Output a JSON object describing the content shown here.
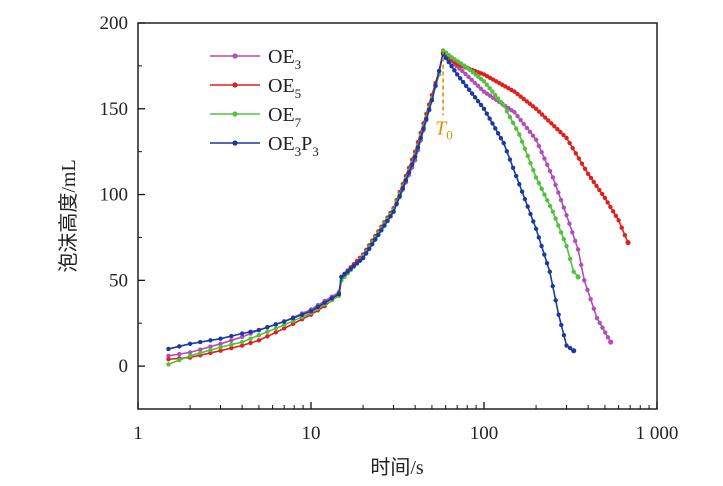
{
  "chart_data": {
    "type": "line",
    "xlabel": "时间/s",
    "ylabel": "泡沫高度/mL",
    "xscale": "log",
    "xlim": [
      1,
      1000
    ],
    "ylim": [
      -25,
      200
    ],
    "xticks": [
      {
        "value": 1,
        "label": "1"
      },
      {
        "value": 10,
        "label": "10"
      },
      {
        "value": 100,
        "label": "100"
      },
      {
        "value": 1000,
        "label": "1 000"
      }
    ],
    "yticks": [
      {
        "value": 0,
        "label": "0"
      },
      {
        "value": 50,
        "label": "50"
      },
      {
        "value": 100,
        "label": "100"
      },
      {
        "value": 150,
        "label": "150"
      },
      {
        "value": 200,
        "label": "200"
      }
    ],
    "legend_position": "top-left",
    "annotation": {
      "base": "T",
      "sub": "0",
      "x": 58,
      "y_top": 184,
      "y_bottom": 145,
      "color": "#ef8a00"
    },
    "series": [
      {
        "name": "OE3",
        "name_base": "OE",
        "name_sub": "3",
        "color": "#b04fb8",
        "points": [
          [
            1.5,
            6
          ],
          [
            2,
            8
          ],
          [
            3,
            13
          ],
          [
            4,
            17
          ],
          [
            5,
            21
          ],
          [
            7,
            26
          ],
          [
            10,
            33
          ],
          [
            12,
            38
          ],
          [
            14.5,
            43
          ],
          [
            15,
            52
          ],
          [
            20,
            63
          ],
          [
            30,
            90
          ],
          [
            40,
            120
          ],
          [
            50,
            155
          ],
          [
            55,
            172
          ],
          [
            58,
            182
          ],
          [
            62,
            179
          ],
          [
            75,
            172
          ],
          [
            100,
            160
          ],
          [
            150,
            148
          ],
          [
            200,
            132
          ],
          [
            250,
            110
          ],
          [
            300,
            88
          ],
          [
            350,
            68
          ],
          [
            380,
            50
          ],
          [
            450,
            28
          ],
          [
            540,
            14
          ]
        ]
      },
      {
        "name": "OE5",
        "name_base": "OE",
        "name_sub": "5",
        "color": "#e02020",
        "points": [
          [
            1.5,
            4
          ],
          [
            2,
            5
          ],
          [
            3,
            9
          ],
          [
            4,
            12
          ],
          [
            5,
            15
          ],
          [
            7,
            22
          ],
          [
            10,
            30
          ],
          [
            12,
            35
          ],
          [
            14.5,
            42
          ],
          [
            15,
            52
          ],
          [
            20,
            65
          ],
          [
            30,
            92
          ],
          [
            40,
            125
          ],
          [
            50,
            158
          ],
          [
            55,
            172
          ],
          [
            58,
            183
          ],
          [
            70,
            176
          ],
          [
            100,
            170
          ],
          [
            150,
            160
          ],
          [
            200,
            150
          ],
          [
            300,
            133
          ],
          [
            400,
            112
          ],
          [
            500,
            98
          ],
          [
            600,
            85
          ],
          [
            680,
            72
          ]
        ]
      },
      {
        "name": "OE7",
        "name_base": "OE",
        "name_sub": "7",
        "color": "#55c03e",
        "points": [
          [
            1.5,
            1
          ],
          [
            2,
            6
          ],
          [
            3,
            11
          ],
          [
            4,
            14
          ],
          [
            5,
            18
          ],
          [
            7,
            24
          ],
          [
            10,
            31
          ],
          [
            12,
            36
          ],
          [
            14.5,
            41
          ],
          [
            15,
            50
          ],
          [
            20,
            64
          ],
          [
            30,
            91
          ],
          [
            40,
            123
          ],
          [
            50,
            156
          ],
          [
            55,
            170
          ],
          [
            58,
            184
          ],
          [
            65,
            180
          ],
          [
            80,
            174
          ],
          [
            100,
            166
          ],
          [
            130,
            152
          ],
          [
            160,
            135
          ],
          [
            200,
            110
          ],
          [
            250,
            90
          ],
          [
            300,
            70
          ],
          [
            330,
            55
          ],
          [
            350,
            52
          ]
        ]
      },
      {
        "name": "OE3P3",
        "name_base": "OE",
        "name_sub": "3",
        "name_p": "P",
        "name_psub": "3",
        "color": "#1a3a9f",
        "points": [
          [
            1.5,
            10
          ],
          [
            2,
            13
          ],
          [
            3,
            16
          ],
          [
            4,
            19
          ],
          [
            5,
            21
          ],
          [
            7,
            26
          ],
          [
            10,
            32
          ],
          [
            12,
            37
          ],
          [
            14.5,
            42
          ],
          [
            15,
            52
          ],
          [
            20,
            63
          ],
          [
            30,
            90
          ],
          [
            40,
            122
          ],
          [
            50,
            155
          ],
          [
            55,
            172
          ],
          [
            58,
            182
          ],
          [
            70,
            170
          ],
          [
            100,
            150
          ],
          [
            130,
            130
          ],
          [
            160,
            106
          ],
          [
            200,
            80
          ],
          [
            240,
            55
          ],
          [
            270,
            30
          ],
          [
            300,
            12
          ],
          [
            330,
            9
          ]
        ]
      }
    ]
  }
}
